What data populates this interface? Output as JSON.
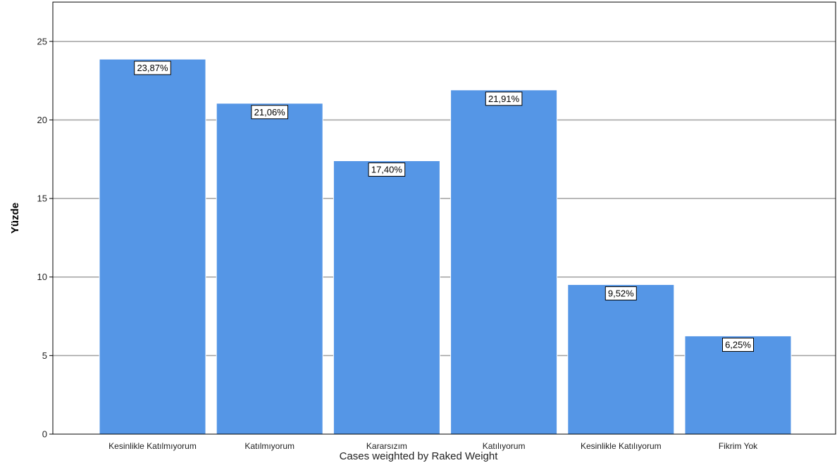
{
  "chart_data": {
    "type": "bar",
    "categories": [
      "Kesinlikle Katılmıyorum",
      "Katılmıyorum",
      "Kararsızım",
      "Katılıyorum",
      "Kesinlikle Katılıyorum",
      "Fikrim Yok"
    ],
    "values": [
      23.87,
      21.06,
      17.4,
      21.91,
      9.52,
      6.25
    ],
    "data_labels": [
      "23,87%",
      "21,06%",
      "17,40%",
      "21,91%",
      "9,52%",
      "6,25%"
    ],
    "ylabel": "Yüzde",
    "xlabel": "Cases weighted by Raked Weight",
    "ylim": [
      0,
      27.5
    ],
    "yticks": [
      0,
      5,
      10,
      15,
      20,
      25
    ],
    "grid": "horizontal",
    "legend": "none",
    "colors": {
      "bar": "#5596E6",
      "bar_edge": "#ffffff",
      "grid": "#a0a0a0",
      "frame": "#000000"
    }
  }
}
